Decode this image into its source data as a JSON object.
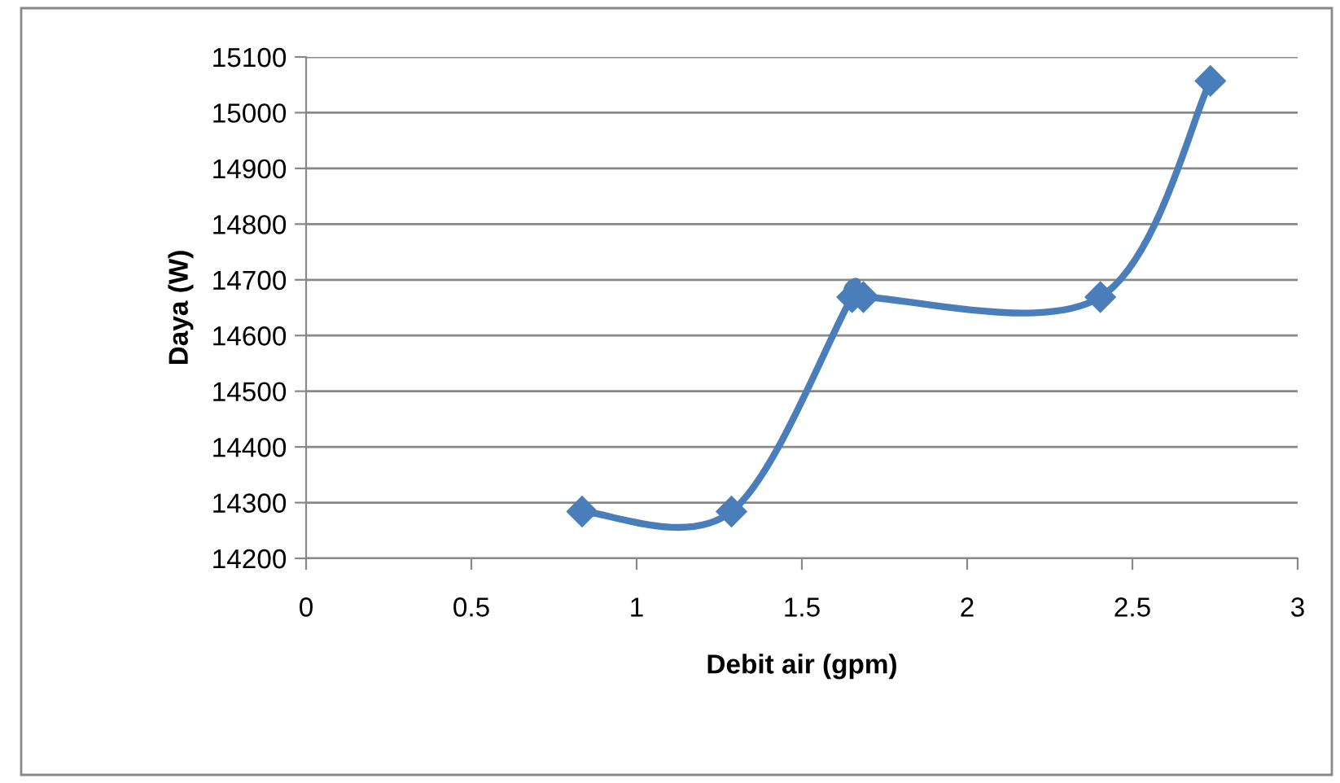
{
  "chart_data": {
    "type": "line",
    "xlabel": "Debit air (gpm)",
    "ylabel": "Daya (W)",
    "x": [
      0.835,
      1.287,
      1.652,
      1.686,
      2.403,
      2.736
    ],
    "series": [
      {
        "color": "#4a7ebb",
        "values": [
          14284,
          14284,
          14669,
          14669,
          14669,
          15057
        ]
      }
    ],
    "xlim": [
      0,
      3
    ],
    "xticks": [
      0,
      0.5,
      1,
      1.5,
      2,
      2.5,
      3
    ],
    "ylim": [
      14200,
      15100
    ],
    "yticks": [
      14200,
      14300,
      14400,
      14500,
      14600,
      14700,
      14800,
      14900,
      15000,
      15100
    ],
    "grid": "y",
    "marker": "diamond",
    "line_style": "solid",
    "legend": false
  }
}
